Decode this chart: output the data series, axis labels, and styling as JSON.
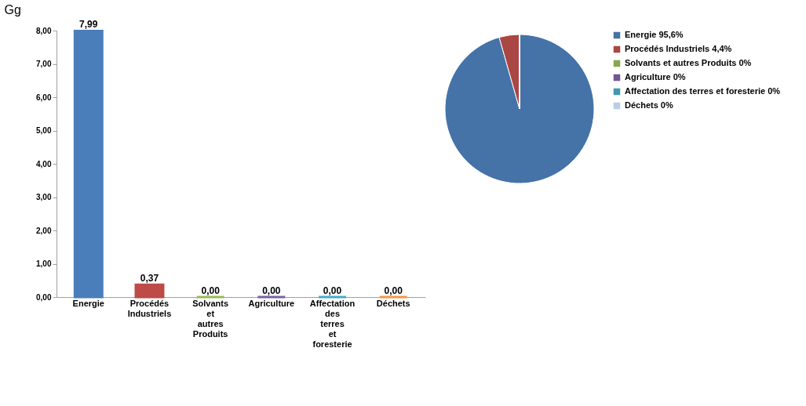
{
  "chart_data": [
    {
      "type": "bar",
      "ylabel": "Gg",
      "categories": [
        "Energie",
        "Procédés Industriels",
        "Solvants et autres Produits",
        "Agriculture",
        "Affectation des terres et foresterie",
        "Déchets"
      ],
      "values": [
        7.99,
        0.37,
        0,
        0,
        0,
        0
      ],
      "colors": [
        "#4a7ebb",
        "#be4b48",
        "#98b954",
        "#7d60a0",
        "#46aac5",
        "#f79646"
      ],
      "value_labels": [
        "7,99",
        "0,37",
        "0,00",
        "0,00",
        "0,00",
        "0,00"
      ],
      "ylim": [
        0,
        8
      ],
      "yticks": [
        {
          "value": 0,
          "label": "0,00"
        },
        {
          "value": 1,
          "label": "1,00"
        },
        {
          "value": 2,
          "label": "2,00"
        },
        {
          "value": 3,
          "label": "3,00"
        },
        {
          "value": 4,
          "label": "4,00"
        },
        {
          "value": 5,
          "label": "5,00"
        },
        {
          "value": 6,
          "label": "6,00"
        },
        {
          "value": 7,
          "label": "7,00"
        },
        {
          "value": 8,
          "label": "8,00"
        }
      ],
      "grid": false
    },
    {
      "type": "pie",
      "categories": [
        "Energie",
        "Procédés Industriels",
        "Solvants et autres Produits",
        "Agriculture",
        "Affectation des terres et foresterie",
        "Déchets"
      ],
      "values": [
        95.6,
        4.4,
        0,
        0,
        0,
        0
      ],
      "colors": [
        "#4573a7",
        "#aa4643",
        "#89a54e",
        "#71588f",
        "#4198af",
        "#b9cde5"
      ],
      "value_labels": [
        "95,6%",
        "4,4%",
        "0%",
        "0%",
        "0%",
        "0%"
      ],
      "legend": "right"
    }
  ]
}
